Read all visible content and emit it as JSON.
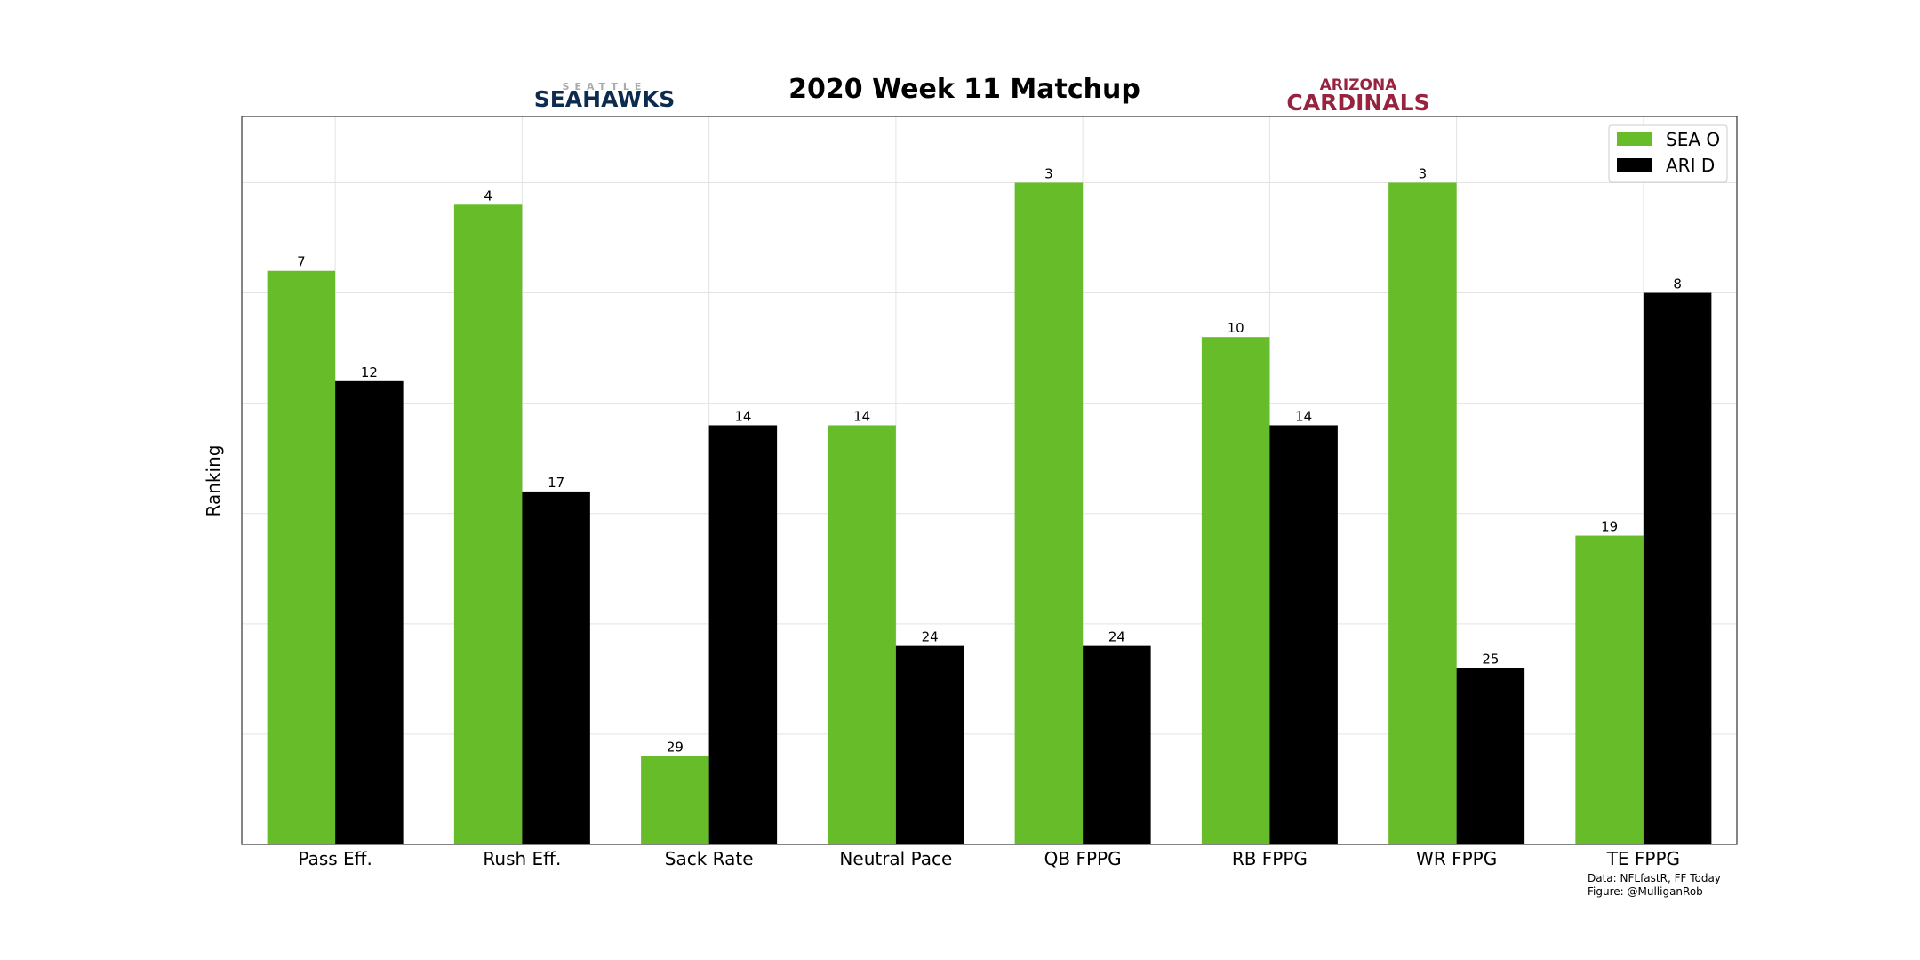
{
  "chart_data": {
    "type": "bar",
    "title": "2020 Week 11 Matchup",
    "ylabel": "Ranking",
    "xlabel": "",
    "categories": [
      "Pass Eff.",
      "Rush Eff.",
      "Sack Rate",
      "Neutral Pace",
      "QB FPPG",
      "RB FPPG",
      "WR FPPG",
      "TE FPPG"
    ],
    "series": [
      {
        "name": "SEA O",
        "color": "#67bd29",
        "values": [
          7,
          4,
          29,
          14,
          3,
          10,
          3,
          19
        ]
      },
      {
        "name": "ARI D",
        "color": "#000000",
        "values": [
          12,
          17,
          14,
          24,
          24,
          14,
          25,
          8
        ]
      }
    ],
    "value_note": "rankings 1-32; bar height = 33 - ranking",
    "ylim": [
      0,
      33
    ],
    "grid": true,
    "legend": "top-right"
  },
  "logos": {
    "left": {
      "small_text": "SEATTLE",
      "big_text": "SEAHAWKS",
      "color": "#0d2b4e",
      "small_color": "#a5acaf"
    },
    "right": {
      "top_text": "ARIZONA",
      "big_text": "CARDINALS",
      "color": "#97233f"
    }
  },
  "credits": {
    "line1": "Data: NFLfastR, FF Today",
    "line2": "Figure: @MulliganRob"
  }
}
